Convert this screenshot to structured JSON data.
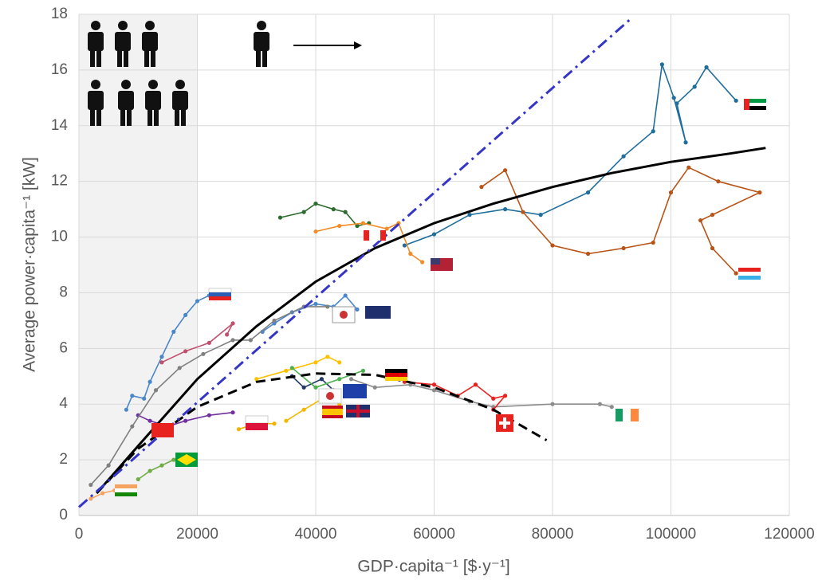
{
  "chart_data": {
    "type": "line",
    "x_label": "GDP·capita⁻¹ [$·y⁻¹]",
    "y_label": "Average power·capita⁻¹ [kW]",
    "xlim": [
      0,
      120000
    ],
    "xticks": [
      0,
      20000,
      40000,
      60000,
      80000,
      100000,
      120000
    ],
    "ylim": [
      0,
      18
    ],
    "yticks": [
      0,
      2,
      4,
      6,
      8,
      10,
      12,
      14,
      16,
      18
    ],
    "grid": true,
    "shade_xlim": [
      0,
      20000
    ],
    "shade_color": "#f2f2f2",
    "series": [
      {
        "color": "#1f6e9c",
        "style": "solid",
        "markers": true,
        "x": [
          55000,
          60000,
          66000,
          72000,
          78000,
          86000,
          92000,
          97000,
          98500,
          100500,
          102500,
          101000,
          104000,
          106000,
          111000
        ],
        "values": [
          9.7,
          10.1,
          10.8,
          11,
          10.8,
          11.6,
          12.9,
          13.8,
          16.2,
          15,
          13.4,
          14.8,
          15.4,
          16.1,
          14.9
        ]
      },
      {
        "color": "#b85417",
        "style": "solid",
        "markers": true,
        "x": [
          68000,
          72000,
          75000,
          80000,
          86000,
          92000,
          97000,
          100000,
          103000,
          108000,
          115000,
          107000,
          105000,
          107000,
          111000
        ],
        "values": [
          11.8,
          12.4,
          10.9,
          9.7,
          9.4,
          9.6,
          9.8,
          11.6,
          12.5,
          12,
          11.6,
          10.8,
          10.6,
          9.6,
          8.7
        ]
      },
      {
        "color": "#2e6b2e",
        "style": "solid",
        "markers": true,
        "x": [
          34000,
          38000,
          40000,
          43000,
          45000,
          47000,
          49000
        ],
        "values": [
          10.7,
          10.9,
          11.2,
          11,
          10.9,
          10.4,
          10.5
        ]
      },
      {
        "color": "#f28c28",
        "style": "solid",
        "markers": true,
        "x": [
          40000,
          44000,
          48000,
          52000,
          54000,
          56000,
          58000
        ],
        "values": [
          10.2,
          10.4,
          10.5,
          10.3,
          10.5,
          9.4,
          9.1
        ]
      },
      {
        "color": "#4a86c8",
        "style": "solid",
        "markers": true,
        "x": [
          31000,
          33000,
          36000,
          40000,
          43000,
          45000,
          47000
        ],
        "values": [
          6.6,
          6.9,
          7.3,
          7.6,
          7.5,
          7.9,
          7.4
        ]
      },
      {
        "color": "#4a86c8",
        "style": "solid",
        "markers": true,
        "x": [
          8000,
          9000,
          11000,
          12000,
          14000,
          16000,
          18000,
          20000,
          22000
        ],
        "values": [
          3.8,
          4.3,
          4.2,
          4.8,
          5.7,
          6.6,
          7.2,
          7.7,
          7.9
        ]
      },
      {
        "color": "#c0506e",
        "style": "solid",
        "markers": true,
        "x": [
          14000,
          18000,
          22000,
          26000,
          25000
        ],
        "values": [
          5.5,
          5.9,
          6.2,
          6.9,
          6.5
        ]
      },
      {
        "color": "#7030a0",
        "style": "solid",
        "markers": true,
        "x": [
          10000,
          12000,
          15000,
          18000,
          22000,
          26000
        ],
        "values": [
          3.6,
          3.4,
          3.2,
          3.4,
          3.6,
          3.7
        ]
      },
      {
        "color": "#808080",
        "style": "solid",
        "markers": true,
        "x": [
          2000,
          5000,
          9000,
          13000,
          17000,
          21000,
          26000,
          29000,
          33000,
          38000,
          42000
        ],
        "values": [
          1.1,
          1.8,
          3.2,
          4.5,
          5.3,
          5.8,
          6.3,
          6.3,
          7,
          7.5,
          7.5
        ]
      },
      {
        "color": "#70ad47",
        "style": "solid",
        "markers": true,
        "x": [
          10000,
          12000,
          14000,
          16000
        ],
        "values": [
          1.3,
          1.6,
          1.8,
          2
        ]
      },
      {
        "color": "#f4a460",
        "style": "solid",
        "markers": true,
        "x": [
          2000,
          4000,
          6000
        ],
        "values": [
          0.6,
          0.8,
          0.9
        ]
      },
      {
        "color": "#8c8c8c",
        "style": "solid",
        "markers": true,
        "x": [
          46000,
          50000,
          56000,
          60000,
          66000,
          70000,
          80000,
          88000,
          90000
        ],
        "values": [
          4.9,
          4.6,
          4.7,
          4.5,
          4.1,
          3.9,
          4,
          4,
          3.9
        ]
      },
      {
        "color": "#e8231f",
        "style": "solid",
        "markers": true,
        "x": [
          55000,
          60000,
          64000,
          67000,
          70000,
          72000,
          70000
        ],
        "values": [
          4.8,
          4.7,
          4.3,
          4.7,
          4.2,
          4.3,
          3.8
        ]
      },
      {
        "color": "#ffc000",
        "style": "solid",
        "markers": true,
        "x": [
          30000,
          35000,
          40000,
          42000,
          44000
        ],
        "values": [
          4.9,
          5.2,
          5.5,
          5.7,
          5.5
        ]
      },
      {
        "color": "#f5b800",
        "style": "solid",
        "markers": true,
        "x": [
          35000,
          38000,
          42000,
          44000
        ],
        "values": [
          3.4,
          3.8,
          4.3,
          4
        ]
      },
      {
        "color": "#f0b400",
        "style": "solid",
        "markers": true,
        "x": [
          27000,
          30000,
          33000
        ],
        "values": [
          3.1,
          3.3,
          3.3
        ]
      },
      {
        "color": "#203864",
        "style": "solid",
        "markers": true,
        "x": [
          36000,
          38000,
          41000,
          43000
        ],
        "values": [
          5,
          4.6,
          4.9,
          4.5
        ]
      },
      {
        "color": "#4caf50",
        "style": "solid",
        "markers": true,
        "x": [
          36000,
          40000,
          44000,
          48000
        ],
        "values": [
          5.3,
          4.6,
          4.9,
          5.2
        ]
      },
      {
        "color": "#000000",
        "style": "solid",
        "markers": false,
        "x": [
          3000,
          10000,
          20000,
          30000,
          40000,
          50000,
          60000,
          70000,
          80000,
          90000,
          100000,
          110000,
          116000
        ],
        "values": [
          0.8,
          2.5,
          4.9,
          6.8,
          8.4,
          9.6,
          10.5,
          11.2,
          11.8,
          12.3,
          12.7,
          13,
          13.2
        ]
      },
      {
        "color": "#000000",
        "style": "dashed",
        "markers": false,
        "x": [
          3000,
          10000,
          20000,
          30000,
          40000,
          50000,
          60000,
          70000,
          79000
        ],
        "values": [
          0.8,
          2.4,
          3.9,
          4.8,
          5.1,
          5.05,
          4.6,
          3.8,
          2.7
        ]
      },
      {
        "color": "#3535c8",
        "style": "dashdot",
        "markers": false,
        "x": [
          0,
          93000
        ],
        "values": [
          0.3,
          17.8
        ]
      }
    ]
  }
}
